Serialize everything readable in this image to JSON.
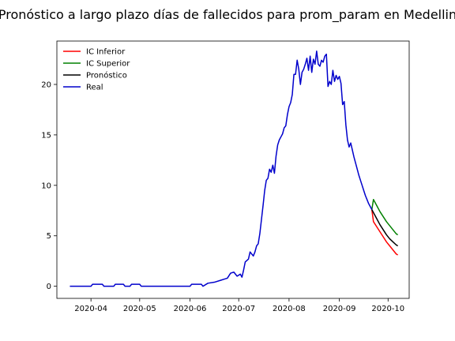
{
  "chart_data": {
    "type": "line",
    "title": "Pronóstico a largo plazo días de fallecidos para prom_param en Medellin",
    "xlabel": "",
    "ylabel": "",
    "xlim": [
      "2020-03-11",
      "2020-10-14"
    ],
    "ylim": [
      -1.2,
      24.3
    ],
    "x_ticks": [
      {
        "date": "2020-04-01",
        "label": "2020-04"
      },
      {
        "date": "2020-05-01",
        "label": "2020-05"
      },
      {
        "date": "2020-06-01",
        "label": "2020-06"
      },
      {
        "date": "2020-07-01",
        "label": "2020-07"
      },
      {
        "date": "2020-08-01",
        "label": "2020-08"
      },
      {
        "date": "2020-09-01",
        "label": "2020-09"
      },
      {
        "date": "2020-10-01",
        "label": "2020-10"
      }
    ],
    "y_ticks": [
      0,
      5,
      10,
      15,
      20
    ],
    "grid": false,
    "legend": "top-left",
    "series": [
      {
        "name": "IC Inferior",
        "color": "#ff0000",
        "points": [
          [
            "2020-09-21",
            7.6
          ],
          [
            "2020-09-22",
            6.4
          ],
          [
            "2020-09-24",
            5.9
          ],
          [
            "2020-09-26",
            5.4
          ],
          [
            "2020-09-28",
            4.9
          ],
          [
            "2020-09-30",
            4.4
          ],
          [
            "2020-10-02",
            4.0
          ],
          [
            "2020-10-04",
            3.6
          ],
          [
            "2020-10-06",
            3.2
          ],
          [
            "2020-10-07",
            3.1
          ]
        ]
      },
      {
        "name": "IC Superior",
        "color": "#008000",
        "points": [
          [
            "2020-09-21",
            7.6
          ],
          [
            "2020-09-22",
            8.6
          ],
          [
            "2020-09-24",
            8.0
          ],
          [
            "2020-09-26",
            7.4
          ],
          [
            "2020-09-28",
            6.9
          ],
          [
            "2020-09-30",
            6.4
          ],
          [
            "2020-10-02",
            6.0
          ],
          [
            "2020-10-04",
            5.6
          ],
          [
            "2020-10-06",
            5.2
          ],
          [
            "2020-10-07",
            5.1
          ]
        ]
      },
      {
        "name": "Pronóstico",
        "color": "#000000",
        "points": [
          [
            "2020-09-21",
            7.6
          ],
          [
            "2020-09-22",
            7.3
          ],
          [
            "2020-09-24",
            6.7
          ],
          [
            "2020-09-26",
            6.1
          ],
          [
            "2020-09-28",
            5.6
          ],
          [
            "2020-09-30",
            5.1
          ],
          [
            "2020-10-02",
            4.7
          ],
          [
            "2020-10-04",
            4.4
          ],
          [
            "2020-10-06",
            4.1
          ],
          [
            "2020-10-07",
            4.0
          ]
        ]
      },
      {
        "name": "Real",
        "color": "#0000cc",
        "points": [
          [
            "2020-03-19",
            0.0
          ],
          [
            "2020-03-29",
            0.0
          ],
          [
            "2020-04-01",
            0.0
          ],
          [
            "2020-04-02",
            0.2
          ],
          [
            "2020-04-08",
            0.2
          ],
          [
            "2020-04-09",
            0.0
          ],
          [
            "2020-04-15",
            0.0
          ],
          [
            "2020-04-16",
            0.2
          ],
          [
            "2020-04-21",
            0.2
          ],
          [
            "2020-04-22",
            0.0
          ],
          [
            "2020-04-25",
            0.0
          ],
          [
            "2020-04-26",
            0.2
          ],
          [
            "2020-05-01",
            0.2
          ],
          [
            "2020-05-02",
            0.0
          ],
          [
            "2020-06-01",
            0.0
          ],
          [
            "2020-06-02",
            0.2
          ],
          [
            "2020-06-08",
            0.2
          ],
          [
            "2020-06-09",
            0.0
          ],
          [
            "2020-06-12",
            0.3
          ],
          [
            "2020-06-16",
            0.4
          ],
          [
            "2020-06-20",
            0.6
          ],
          [
            "2020-06-22",
            0.7
          ],
          [
            "2020-06-24",
            0.8
          ],
          [
            "2020-06-26",
            1.3
          ],
          [
            "2020-06-28",
            1.4
          ],
          [
            "2020-06-30",
            1.0
          ],
          [
            "2020-07-02",
            1.2
          ],
          [
            "2020-07-03",
            0.9
          ],
          [
            "2020-07-04",
            1.6
          ],
          [
            "2020-07-05",
            2.4
          ],
          [
            "2020-07-07",
            2.7
          ],
          [
            "2020-07-08",
            3.4
          ],
          [
            "2020-07-09",
            3.2
          ],
          [
            "2020-07-10",
            3.0
          ],
          [
            "2020-07-11",
            3.4
          ],
          [
            "2020-07-12",
            4.0
          ],
          [
            "2020-07-13",
            4.2
          ],
          [
            "2020-07-14",
            5.2
          ],
          [
            "2020-07-15",
            6.6
          ],
          [
            "2020-07-16",
            8.0
          ],
          [
            "2020-07-17",
            9.5
          ],
          [
            "2020-07-18",
            10.5
          ],
          [
            "2020-07-19",
            10.7
          ],
          [
            "2020-07-20",
            11.6
          ],
          [
            "2020-07-21",
            11.3
          ],
          [
            "2020-07-22",
            12.0
          ],
          [
            "2020-07-23",
            11.2
          ],
          [
            "2020-07-24",
            12.9
          ],
          [
            "2020-07-25",
            14.0
          ],
          [
            "2020-07-26",
            14.5
          ],
          [
            "2020-07-27",
            14.8
          ],
          [
            "2020-07-28",
            15.1
          ],
          [
            "2020-07-29",
            15.7
          ],
          [
            "2020-07-30",
            15.9
          ],
          [
            "2020-07-31",
            17.0
          ],
          [
            "2020-08-01",
            17.8
          ],
          [
            "2020-08-02",
            18.2
          ],
          [
            "2020-08-03",
            19.0
          ],
          [
            "2020-08-04",
            21.0
          ],
          [
            "2020-08-05",
            21.0
          ],
          [
            "2020-08-06",
            22.4
          ],
          [
            "2020-08-07",
            21.5
          ],
          [
            "2020-08-08",
            20.0
          ],
          [
            "2020-08-09",
            21.2
          ],
          [
            "2020-08-10",
            21.5
          ],
          [
            "2020-08-11",
            22.0
          ],
          [
            "2020-08-12",
            22.6
          ],
          [
            "2020-08-13",
            21.4
          ],
          [
            "2020-08-14",
            22.8
          ],
          [
            "2020-08-15",
            21.2
          ],
          [
            "2020-08-16",
            22.5
          ],
          [
            "2020-08-17",
            22.0
          ],
          [
            "2020-08-18",
            23.3
          ],
          [
            "2020-08-19",
            22.0
          ],
          [
            "2020-08-20",
            21.8
          ],
          [
            "2020-08-21",
            22.4
          ],
          [
            "2020-08-22",
            22.2
          ],
          [
            "2020-08-23",
            22.8
          ],
          [
            "2020-08-24",
            23.0
          ],
          [
            "2020-08-25",
            19.8
          ],
          [
            "2020-08-26",
            20.3
          ],
          [
            "2020-08-27",
            20.0
          ],
          [
            "2020-08-28",
            21.4
          ],
          [
            "2020-08-29",
            20.3
          ],
          [
            "2020-08-30",
            20.9
          ],
          [
            "2020-08-31",
            20.5
          ],
          [
            "2020-09-01",
            20.8
          ],
          [
            "2020-09-02",
            20.1
          ],
          [
            "2020-09-03",
            18.0
          ],
          [
            "2020-09-04",
            18.3
          ],
          [
            "2020-09-05",
            16.0
          ],
          [
            "2020-09-06",
            14.5
          ],
          [
            "2020-09-07",
            13.8
          ],
          [
            "2020-09-08",
            14.2
          ],
          [
            "2020-09-09",
            13.5
          ],
          [
            "2020-09-10",
            12.8
          ],
          [
            "2020-09-11",
            12.2
          ],
          [
            "2020-09-12",
            11.6
          ],
          [
            "2020-09-13",
            11.0
          ],
          [
            "2020-09-14",
            10.5
          ],
          [
            "2020-09-15",
            10.0
          ],
          [
            "2020-09-16",
            9.5
          ],
          [
            "2020-09-17",
            9.0
          ],
          [
            "2020-09-18",
            8.6
          ],
          [
            "2020-09-19",
            8.2
          ],
          [
            "2020-09-20",
            7.9
          ],
          [
            "2020-09-21",
            7.6
          ]
        ]
      }
    ]
  }
}
